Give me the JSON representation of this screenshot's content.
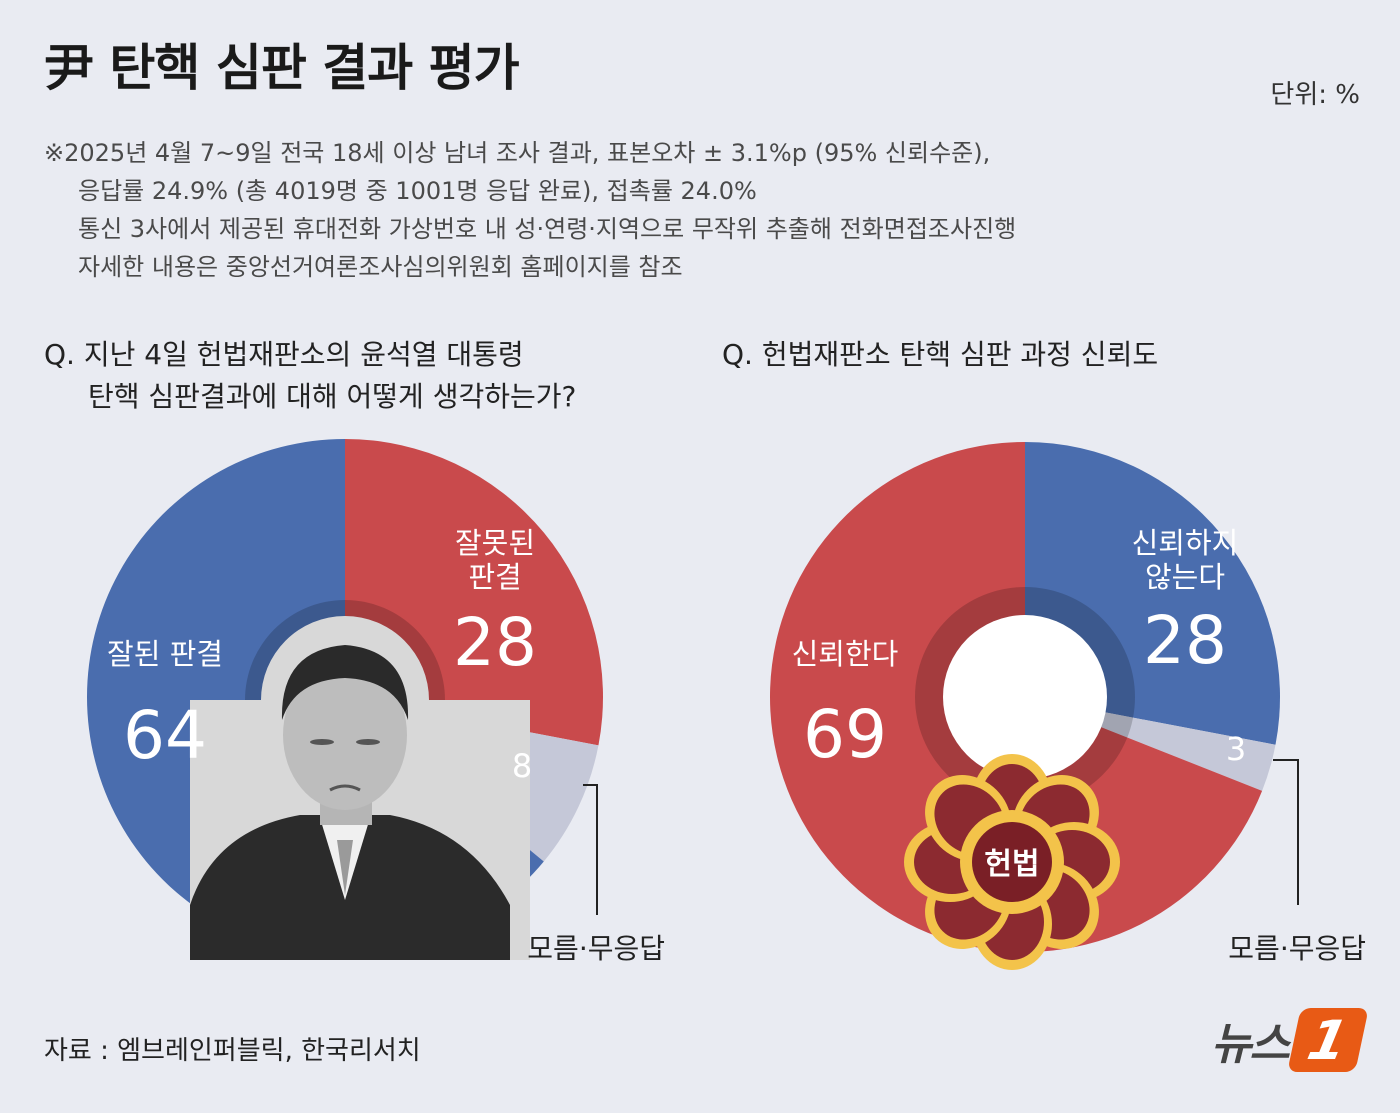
{
  "header": {
    "title": "尹 탄핵 심판 결과 평가",
    "unit": "단위: %"
  },
  "notes": [
    "※2025년 4월 7~9일 전국 18세 이상 남녀 조사 결과, 표본오차 ± 3.1%p (95% 신뢰수준),",
    "응답률 24.9% (총 4019명 중 1001명 응답 완료), 접촉률 24.0%",
    "통신 3사에서 제공된 휴대전화 가상번호 내 성·연령·지역으로 무작위 추출해 전화면접조사진행",
    "자세한 내용은 중앙선거여론조사심의위원회 홈페이지를 참조"
  ],
  "source": "자료 : 엠브레인퍼블릭, 한국리서치",
  "logo": {
    "text": "뉴스",
    "badge": "1"
  },
  "photo": {
    "icon": "portrait-photo"
  },
  "emblem": {
    "icon": "court-emblem",
    "text": "헌법"
  },
  "colors": {
    "red": "#c94a4c",
    "blue": "#4a6dae",
    "gray": "#c5c8d8",
    "background": "#e9ebf2"
  },
  "chart_data": [
    {
      "type": "pie",
      "title": "Q. 지난 4일 헌법재판소의 윤석열 대통령 탄핵 심판결과에 대해 어떻게 생각하는가?",
      "title_lines": [
        "Q. 지난 4일 헌법재판소의 윤석열 대통령",
        "탄핵 심판결과에 대해 어떻게 생각하는가?"
      ],
      "unit": "%",
      "slices": [
        {
          "label": "잘못된 판결",
          "label_lines": [
            "잘못된",
            "판결"
          ],
          "value": 28,
          "color": "#c94a4c"
        },
        {
          "label": "모름·무응답",
          "label_lines": [],
          "value": 8,
          "color": "#c5c8d8"
        },
        {
          "label": "잘된 판결",
          "label_lines": [
            "잘된 판결"
          ],
          "value": 64,
          "color": "#4a6dae"
        }
      ]
    },
    {
      "type": "pie",
      "title": "Q. 헌법재판소 탄핵 심판 과정 신뢰도",
      "title_lines": [
        "Q. 헌법재판소 탄핵 심판 과정 신뢰도"
      ],
      "unit": "%",
      "slices": [
        {
          "label": "신뢰하지 않는다",
          "label_lines": [
            "신뢰하지",
            "않는다"
          ],
          "value": 28,
          "color": "#4a6dae"
        },
        {
          "label": "모름·무응답",
          "label_lines": [],
          "value": 3,
          "color": "#c5c8d8"
        },
        {
          "label": "신뢰한다",
          "label_lines": [
            "신뢰한다"
          ],
          "value": 69,
          "color": "#c94a4c"
        }
      ]
    }
  ]
}
